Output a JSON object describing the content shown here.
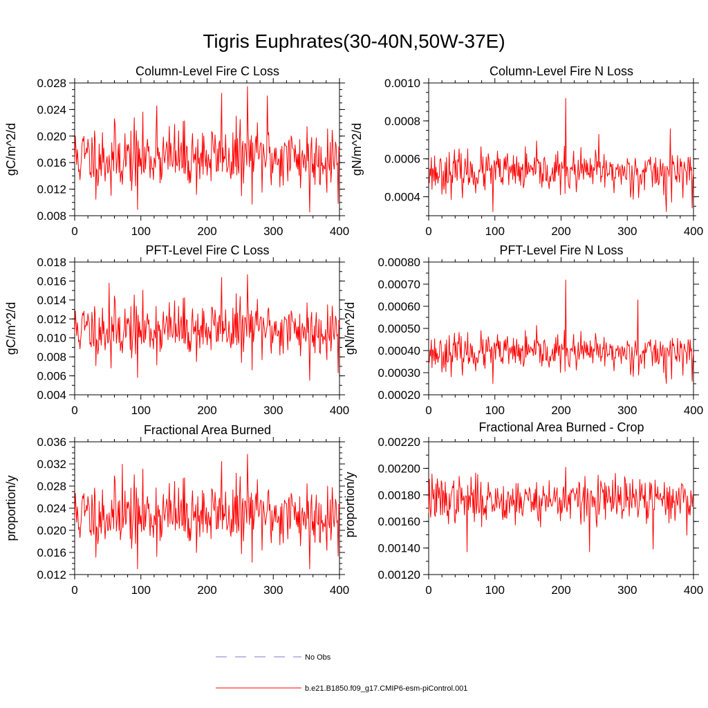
{
  "title": "Tigris Euphrates(30-40N,50W-37E)",
  "colors": {
    "series": "#ff0000",
    "obs": "#7a7ad0",
    "axis": "#000000"
  },
  "legend": {
    "obs_label": "No Obs",
    "model_label": "b.e21.B1850.f09_g17.CMIP6-esm-piControl.001"
  },
  "chart_data": [
    {
      "type": "line",
      "title": "Column-Level Fire C Loss",
      "ylabel": "gC/m^2/d",
      "xlim": [
        0,
        400
      ],
      "xticks": [
        0,
        100,
        200,
        300,
        400
      ],
      "ylim": [
        0.008,
        0.028
      ],
      "yticks": [
        "0.008",
        "0.012",
        "0.016",
        "0.020",
        "0.024",
        "0.028"
      ],
      "yminor": 0.001,
      "base": 0.0168,
      "amp": 0.0028,
      "seed": 11,
      "spikes": [
        [
          95,
          0.0089
        ],
        [
          261,
          0.0275
        ],
        [
          222,
          0.0265
        ],
        [
          291,
          0.0261
        ],
        [
          355,
          0.0085
        ],
        [
          398,
          0.0098
        ],
        [
          55,
          0.011
        ],
        [
          124,
          0.0246
        ]
      ]
    },
    {
      "type": "line",
      "title": "Column-Level Fire N Loss",
      "ylabel": "gN/m^2/d",
      "xlim": [
        0,
        400
      ],
      "xticks": [
        0,
        100,
        200,
        300,
        400
      ],
      "ylim": [
        0.0003,
        0.001
      ],
      "yticks": [
        "0.0004",
        "0.0006",
        "0.0008",
        "0.0010"
      ],
      "yminor": 5e-05,
      "base": 0.00053,
      "amp": 6e-05,
      "seed": 23,
      "spikes": [
        [
          207,
          0.00092
        ],
        [
          97,
          0.00032
        ],
        [
          359,
          0.00032
        ],
        [
          365,
          0.00076
        ],
        [
          398,
          0.00034
        ],
        [
          257,
          0.00073
        ]
      ]
    },
    {
      "type": "line",
      "title": "PFT-Level Fire C Loss",
      "ylabel": "gC/m^2/d",
      "xlim": [
        0,
        400
      ],
      "xticks": [
        0,
        100,
        200,
        300,
        400
      ],
      "ylim": [
        0.004,
        0.018
      ],
      "yticks": [
        "0.004",
        "0.006",
        "0.008",
        "0.010",
        "0.012",
        "0.014",
        "0.016",
        "0.018"
      ],
      "yminor": 0.001,
      "base": 0.0109,
      "amp": 0.0017,
      "seed": 11,
      "spikes": [
        [
          95,
          0.0058
        ],
        [
          261,
          0.0167
        ],
        [
          222,
          0.0164
        ],
        [
          355,
          0.0055
        ],
        [
          398,
          0.0063
        ],
        [
          55,
          0.0068
        ],
        [
          52,
          0.0158
        ]
      ]
    },
    {
      "type": "line",
      "title": "PFT-Level Fire N Loss",
      "ylabel": "gN/m^2/d",
      "xlim": [
        0,
        400
      ],
      "xticks": [
        0,
        100,
        200,
        300,
        400
      ],
      "ylim": [
        0.0002,
        0.0008
      ],
      "yticks": [
        "0.00020",
        "0.00030",
        "0.00040",
        "0.00050",
        "0.00060",
        "0.00070",
        "0.00080"
      ],
      "yminor": 5e-05,
      "base": 0.00039,
      "amp": 4.5e-05,
      "seed": 23,
      "spikes": [
        [
          207,
          0.00072
        ],
        [
          316,
          0.00063
        ],
        [
          97,
          0.00025
        ],
        [
          359,
          0.00025
        ],
        [
          398,
          0.00026
        ]
      ]
    },
    {
      "type": "line",
      "title": "Fractional Area Burned",
      "ylabel": "proportion/y",
      "xlim": [
        0,
        400
      ],
      "xticks": [
        0,
        100,
        200,
        300,
        400
      ],
      "ylim": [
        0.012,
        0.036
      ],
      "yticks": [
        "0.012",
        "0.016",
        "0.020",
        "0.024",
        "0.028",
        "0.032",
        "0.036"
      ],
      "yminor": 0.001,
      "base": 0.0228,
      "amp": 0.0034,
      "seed": 11,
      "spikes": [
        [
          95,
          0.013
        ],
        [
          261,
          0.0338
        ],
        [
          222,
          0.0325
        ],
        [
          355,
          0.013
        ],
        [
          398,
          0.0153
        ],
        [
          72,
          0.032
        ]
      ]
    },
    {
      "type": "line",
      "title": "Fractional Area Burned - Crop",
      "ylabel": "proportion/y",
      "xlim": [
        0,
        400
      ],
      "xticks": [
        0,
        100,
        200,
        300,
        400
      ],
      "ylim": [
        0.0012,
        0.0022
      ],
      "yticks": [
        "0.00120",
        "0.00140",
        "0.00160",
        "0.00180",
        "0.00200",
        "0.00220"
      ],
      "yminor": 0.0001,
      "base": 0.00176,
      "amp": 9.5e-05,
      "seed": 37,
      "spikes": [
        [
          207,
          0.00201
        ],
        [
          58,
          0.00137
        ],
        [
          243,
          0.00137
        ],
        [
          339,
          0.00139
        ],
        [
          5,
          0.00196
        ]
      ]
    }
  ]
}
